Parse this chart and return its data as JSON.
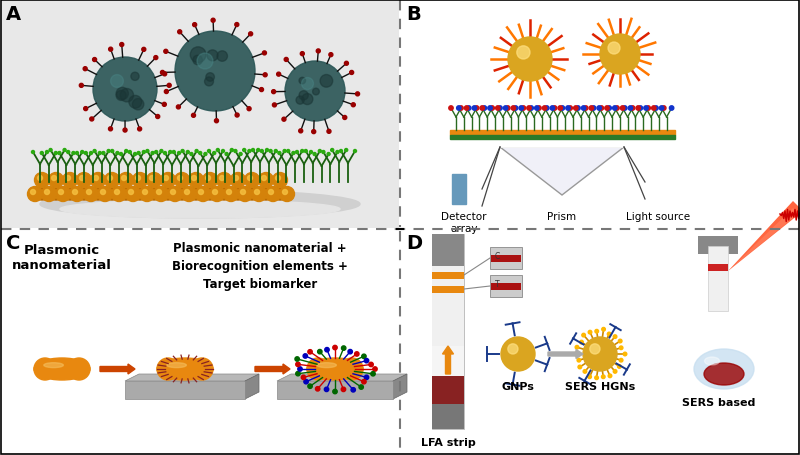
{
  "figure_width": 8.0,
  "figure_height": 4.56,
  "dpi": 100,
  "bg_color": "#ffffff",
  "panel_A_label": "A",
  "panel_B_label": "B",
  "panel_C_label": "C",
  "panel_D_label": "D",
  "panel_label_fontsize": 14,
  "panel_C_text1": "Plasmonic\nnanomaterial",
  "panel_C_text2": "Plasmonic nanomaterial +\nBiorecognition elements +\nTarget biomarker",
  "panel_D_text_lfa": "LFA strip",
  "panel_D_text_gnps": "GNPs",
  "panel_D_text_sers_hgns": "SERS HGNs",
  "panel_D_text_sers_based": "SERS based",
  "panel_B_text_detector": "Detector\narray",
  "panel_B_text_prism": "Prism",
  "panel_B_text_light": "Light source",
  "gold_color": "#D4820A",
  "gold_nanorod": "#E8880F",
  "gold_gnp": "#DAA520",
  "red_color": "#CC0000",
  "blue_color": "#1a3a8a",
  "green_color": "#2d6e2d",
  "gray_dark": "#555555",
  "gray_mid": "#999999",
  "gray_light": "#cccccc",
  "orange_arrow": "#CC4400",
  "teal_virus": "#2a5050",
  "panelA_bg": "#e8e8e8",
  "strip_orange": "#E8880F",
  "strip_red": "#CC0000"
}
